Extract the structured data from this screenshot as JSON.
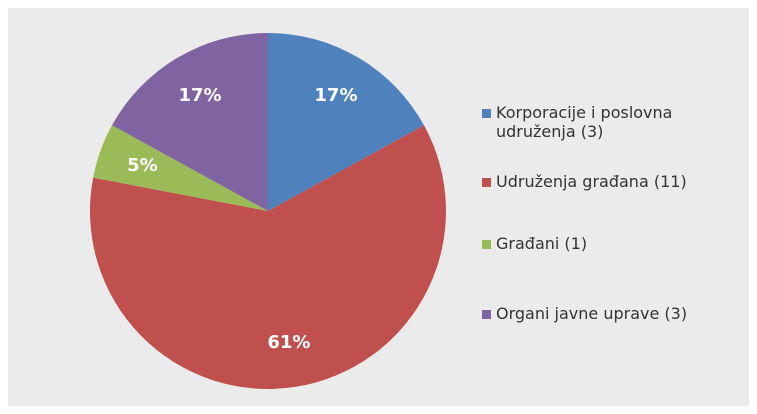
{
  "chart_data": {
    "type": "pie",
    "categories": [
      "Korporacije i poslovna udruženja (3)",
      "Udruženja građana (11)",
      "Građani (1)",
      "Organi javne uprave (3)"
    ],
    "values": [
      17,
      61,
      5,
      17
    ],
    "value_labels": [
      "17%",
      "61%",
      "5%",
      "17%"
    ],
    "colors": [
      "#4f81bd",
      "#c0504d",
      "#9bbb59",
      "#8064a2"
    ],
    "legend": "right"
  }
}
